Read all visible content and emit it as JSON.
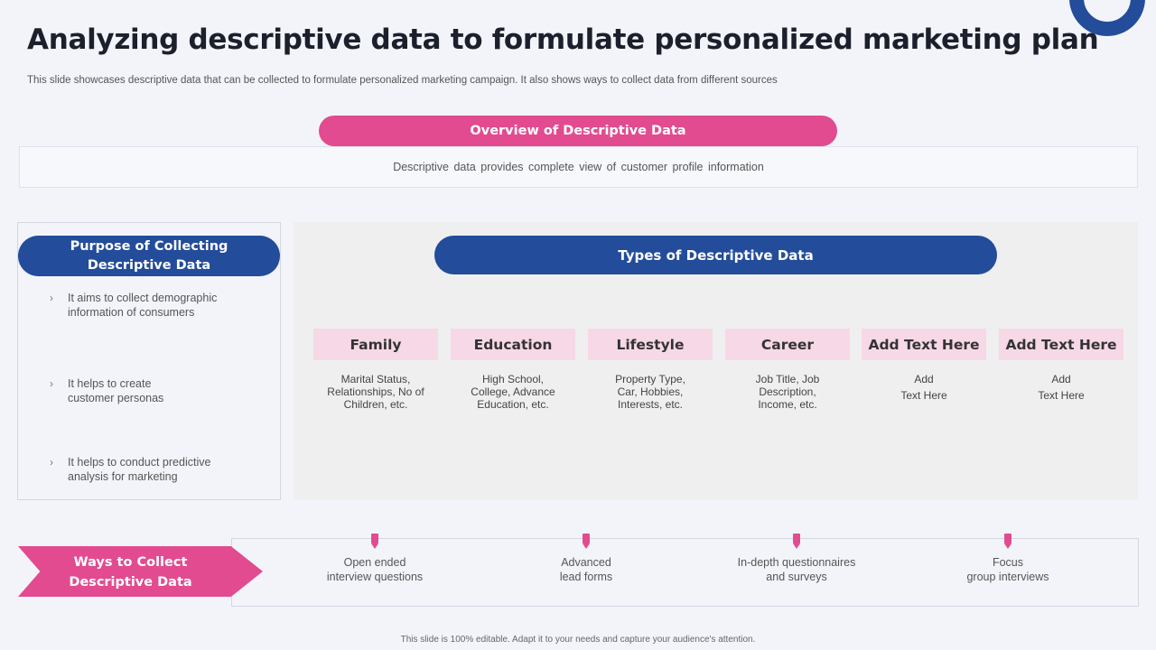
{
  "title": "Analyzing descriptive data to formulate personalized marketing plan",
  "subtitle": "This slide showcases descriptive data that can be collected to formulate personalized marketing campaign. It also shows ways to collect data from different sources",
  "overview": {
    "heading": "Overview of Descriptive Data",
    "text": "Descriptive data provides complete view of customer profile information"
  },
  "purpose": {
    "heading_line1": "Purpose of Collecting",
    "heading_line2": "Descriptive Data",
    "items": [
      {
        "line1": "It aims to collect demographic",
        "line2": "information of consumers"
      },
      {
        "line1": "It helps to create",
        "line2": "customer personas"
      },
      {
        "line1": "It helps to conduct predictive",
        "line2": "analysis for marketing"
      }
    ]
  },
  "types": {
    "heading": "Types of Descriptive Data",
    "items": [
      {
        "label": "Family",
        "desc": [
          "Marital Status,",
          "Relationships, No of",
          "Children, etc."
        ]
      },
      {
        "label": "Education",
        "desc": [
          "High School,",
          "College, Advance",
          "Education, etc."
        ]
      },
      {
        "label": "Lifestyle",
        "desc": [
          "Property Type,",
          "Car, Hobbies,",
          "Interests, etc."
        ]
      },
      {
        "label": "Career",
        "desc": [
          "Job Title, Job",
          "Description,",
          "Income, etc."
        ]
      },
      {
        "label": "Add Text Here",
        "desc": [
          "Add",
          "Text Here"
        ]
      },
      {
        "label": "Add Text Here",
        "desc": [
          "Add",
          "Text Here"
        ]
      }
    ]
  },
  "ways": {
    "heading_line1": "Ways to Collect",
    "heading_line2": "Descriptive Data",
    "items": [
      {
        "line1": "Open ended",
        "line2": "interview questions"
      },
      {
        "line1": "Advanced",
        "line2": "lead forms"
      },
      {
        "line1": "In-depth questionnaires",
        "line2": "and surveys"
      },
      {
        "line1": "Focus",
        "line2": "group interviews"
      }
    ]
  },
  "footer": "This slide is 100% editable. Adapt it to your needs and capture your audience's attention.",
  "colors": {
    "pink": "#e24b8f",
    "navy": "#234c9a",
    "light_pink": "#f7d8e6"
  }
}
